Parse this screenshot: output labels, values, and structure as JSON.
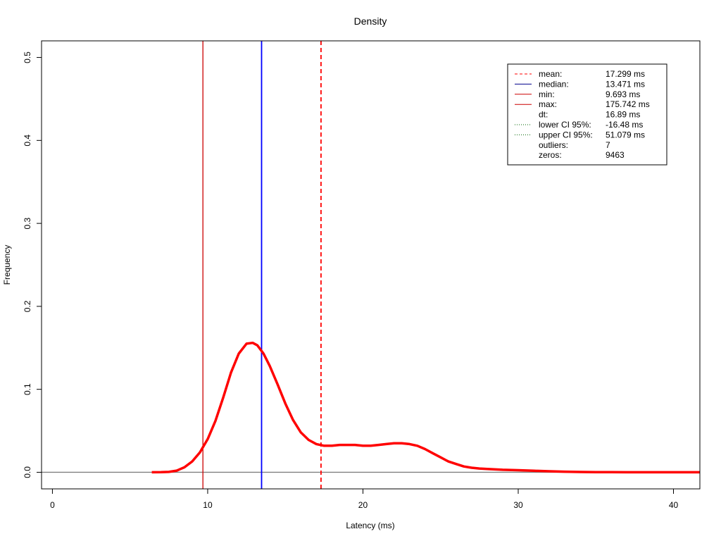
{
  "chart_data": {
    "type": "line",
    "title": "Density",
    "xlabel": "Latency (ms)",
    "ylabel": "Frequency",
    "xlim": [
      -0.7,
      41.7
    ],
    "ylim": [
      -0.02,
      0.52
    ],
    "x_ticks": [
      0,
      10,
      20,
      30,
      40
    ],
    "y_ticks": [
      0.0,
      0.1,
      0.2,
      0.3,
      0.4,
      0.5
    ],
    "x_tick_labels": [
      "0",
      "10",
      "20",
      "30",
      "40"
    ],
    "y_tick_labels": [
      "0.0",
      "0.1",
      "0.2",
      "0.3",
      "0.4",
      "0.5"
    ],
    "grid": false,
    "legend_position": "top-right",
    "baseline": 0,
    "series": [
      {
        "color": "#ff0000",
        "x": [
          6.4,
          7.0,
          7.5,
          8.0,
          8.5,
          9.0,
          9.5,
          10.0,
          10.5,
          11.0,
          11.5,
          12.0,
          12.5,
          12.9,
          13.2,
          13.6,
          14.0,
          14.5,
          15.0,
          15.5,
          16.0,
          16.5,
          17.0,
          17.5,
          18.0,
          18.5,
          19.0,
          19.5,
          20.0,
          20.5,
          21.0,
          21.5,
          22.0,
          22.5,
          23.0,
          23.5,
          24.0,
          24.5,
          25.0,
          25.5,
          26.0,
          26.5,
          27.0,
          27.5,
          28.0,
          29.0,
          30.0,
          31.0,
          32.0,
          33.0,
          34.0,
          35.0,
          36.0,
          38.0,
          40.0,
          41.7
        ],
        "y": [
          0.0,
          0.0001,
          0.0005,
          0.002,
          0.006,
          0.013,
          0.024,
          0.04,
          0.062,
          0.09,
          0.12,
          0.143,
          0.155,
          0.156,
          0.153,
          0.143,
          0.128,
          0.106,
          0.083,
          0.063,
          0.048,
          0.039,
          0.034,
          0.032,
          0.032,
          0.033,
          0.033,
          0.033,
          0.032,
          0.032,
          0.033,
          0.034,
          0.035,
          0.035,
          0.034,
          0.032,
          0.028,
          0.023,
          0.018,
          0.013,
          0.01,
          0.007,
          0.0055,
          0.0045,
          0.004,
          0.003,
          0.0025,
          0.0018,
          0.0012,
          0.0007,
          0.0004,
          0.0002,
          0.0001,
          0.0,
          0.0,
          0.0
        ]
      }
    ],
    "vlines": [
      {
        "name": "min",
        "x": 9.693,
        "color": "#cc0000",
        "dash": "solid",
        "width": 1.3
      },
      {
        "name": "median",
        "x": 13.471,
        "color": "#0000ff",
        "dash": "solid",
        "width": 1.8
      },
      {
        "name": "mean",
        "x": 17.299,
        "color": "#ff0000",
        "dash": "dashed",
        "width": 1.8
      }
    ],
    "legend": [
      {
        "label": "mean:",
        "value": "17.299 ms",
        "line_color": "#ff0000",
        "line_style": "dashed"
      },
      {
        "label": "median:",
        "value": "13.471 ms",
        "line_color": "#00008b",
        "line_style": "solid"
      },
      {
        "label": "min:",
        "value": "9.693 ms",
        "line_color": "#cc0000",
        "line_style": "solid"
      },
      {
        "label": "max:",
        "value": "175.742 ms",
        "line_color": "#cc0000",
        "line_style": "solid"
      },
      {
        "label": "dt:",
        "value": "16.89 ms",
        "line_color": "",
        "line_style": "none"
      },
      {
        "label": "lower CI 95%:",
        "value": "-16.48 ms",
        "line_color": "#006400",
        "line_style": "dotted"
      },
      {
        "label": "upper CI 95%:",
        "value": "51.079 ms",
        "line_color": "#006400",
        "line_style": "dotted"
      },
      {
        "label": "outliers:",
        "value": "7",
        "line_color": "",
        "line_style": "none"
      },
      {
        "label": "zeros:",
        "value": "9463",
        "line_color": "",
        "line_style": "none"
      }
    ]
  }
}
